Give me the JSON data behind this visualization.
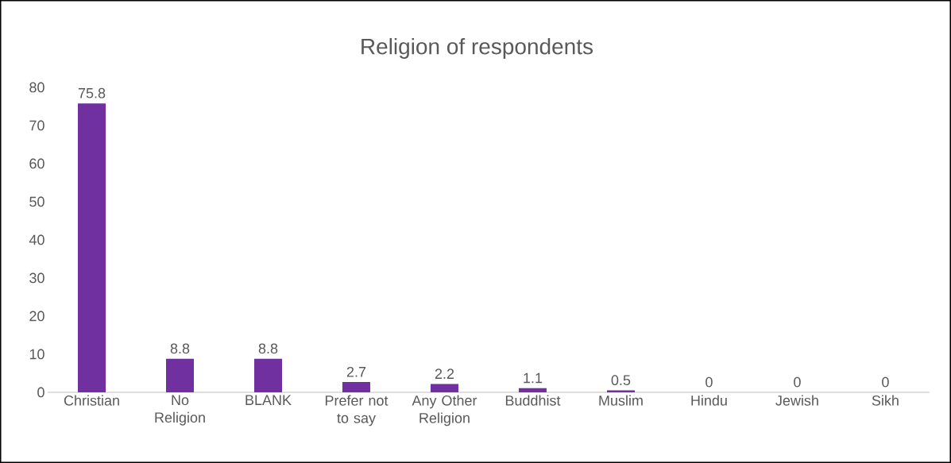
{
  "chart_data": {
    "type": "bar",
    "title": "Religion of respondents",
    "categories": [
      "Christian",
      "No Religion",
      "BLANK",
      "Prefer not to say",
      "Any Other Religion",
      "Buddhist",
      "Muslim",
      "Hindu",
      "Jewish",
      "Sikh"
    ],
    "values": [
      75.8,
      8.8,
      8.8,
      2.7,
      2.2,
      1.1,
      0.5,
      0,
      0,
      0
    ],
    "color": "#7030a0",
    "ylim": [
      0,
      80
    ],
    "yticks": [
      0,
      10,
      20,
      30,
      40,
      50,
      60,
      70,
      80
    ],
    "grid": false,
    "data_labels": true
  }
}
